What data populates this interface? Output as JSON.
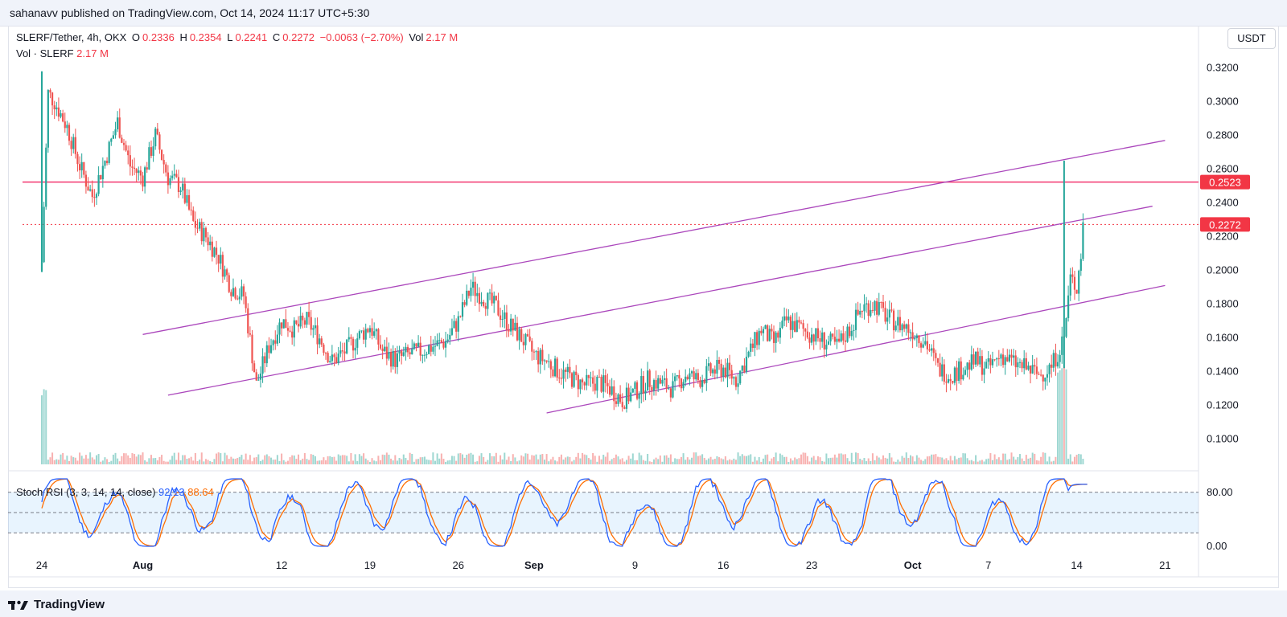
{
  "header": {
    "publisher": "sahanavv published on TradingView.com, Oct 14, 2024 11:17 UTC+5:30"
  },
  "legend": {
    "symbol": "SLERF/Tether, 4h, OKX",
    "o_label": "O",
    "o_value": "0.2336",
    "h_label": "H",
    "h_value": "0.2354",
    "l_label": "L",
    "l_value": "0.2241",
    "c_label": "C",
    "c_value": "0.2272",
    "change": "−0.0063 (−2.70%)",
    "vol_label": "Vol",
    "vol_value": "2.17 M",
    "vol_line_label": "Vol · SLERF",
    "vol_line_value": "2.17 M"
  },
  "currency_button": "USDT",
  "rsi": {
    "label": "Stoch RSI (3, 3, 14, 14, close)",
    "k_value": "92.13",
    "d_value": "88.64",
    "k_color": "#2962ff",
    "d_color": "#ff6d00",
    "band_upper": 80,
    "band_lower": 20,
    "axis_labels": [
      "80.00",
      "0.00"
    ]
  },
  "brand": "TradingView",
  "chart_data": {
    "type": "candlestick",
    "title": "SLERF/Tether, 4h, OKX",
    "xaxis_ticks": [
      "24",
      "Aug",
      "12",
      "19",
      "26",
      "Sep",
      "9",
      "16",
      "23",
      "Oct",
      "7",
      "14",
      "21"
    ],
    "yaxis_ticks": [
      "0.3200",
      "0.3000",
      "0.2800",
      "0.2600",
      "0.2400",
      "0.2200",
      "0.2000",
      "0.1800",
      "0.1600",
      "0.1400",
      "0.1200",
      "0.1000"
    ],
    "ylim": [
      0.085,
      0.325
    ],
    "price_labels": [
      {
        "text": "0.2523",
        "value": 0.2523,
        "color": "#f23645"
      },
      {
        "text": "0.2272",
        "value": 0.2272,
        "color": "#f23645"
      }
    ],
    "horizontal_lines": [
      {
        "value": 0.2523,
        "color": "#f23670",
        "style": "solid"
      },
      {
        "value": 0.2272,
        "color": "#f23645",
        "style": "dotted"
      }
    ],
    "trendline_color": "#ab47bc",
    "trendlines": [
      {
        "start": [
          "Aug 1",
          0.162
        ],
        "end": [
          "Oct 21",
          0.277
        ]
      },
      {
        "start": [
          "Aug 3",
          0.126
        ],
        "end": [
          "Oct 20",
          0.238
        ]
      },
      {
        "start": [
          "Sep 2",
          0.1155
        ],
        "end": [
          "Oct 21",
          0.191
        ]
      }
    ],
    "up_color": "#26a69a",
    "down_color": "#ef5350",
    "price_path": [
      [
        "Jul 24",
        0.205
      ],
      [
        "Jul 24",
        0.305
      ],
      [
        "Jul 25",
        0.3
      ],
      [
        "Jul 26",
        0.285
      ],
      [
        "Jul 27",
        0.262
      ],
      [
        "Jul 28",
        0.244
      ],
      [
        "Jul 29",
        0.265
      ],
      [
        "Jul 30",
        0.288
      ],
      [
        "Jul 31",
        0.262
      ],
      [
        "Aug 1",
        0.255
      ],
      [
        "Aug 2",
        0.28
      ],
      [
        "Aug 3",
        0.255
      ],
      [
        "Aug 4",
        0.25
      ],
      [
        "Aug 5",
        0.228
      ],
      [
        "Aug 6",
        0.22
      ],
      [
        "Aug 7",
        0.208
      ],
      [
        "Aug 8",
        0.19
      ],
      [
        "Aug 9",
        0.185
      ],
      [
        "Aug 10",
        0.132
      ],
      [
        "Aug 11",
        0.155
      ],
      [
        "Aug 12",
        0.17
      ],
      [
        "Aug 13",
        0.165
      ],
      [
        "Aug 14",
        0.17
      ],
      [
        "Aug 15",
        0.16
      ],
      [
        "Aug 16",
        0.146
      ],
      [
        "Aug 17",
        0.152
      ],
      [
        "Aug 18",
        0.16
      ],
      [
        "Aug 19",
        0.167
      ],
      [
        "Aug 20",
        0.152
      ],
      [
        "Aug 21",
        0.147
      ],
      [
        "Aug 22",
        0.15
      ],
      [
        "Aug 23",
        0.152
      ],
      [
        "Aug 24",
        0.155
      ],
      [
        "Aug 25",
        0.158
      ],
      [
        "Aug 26",
        0.17
      ],
      [
        "Aug 27",
        0.19
      ],
      [
        "Aug 28",
        0.184
      ],
      [
        "Aug 29",
        0.178
      ],
      [
        "Aug 30",
        0.168
      ],
      [
        "Aug 31",
        0.16
      ],
      [
        "Sep 1",
        0.15
      ],
      [
        "Sep 2",
        0.146
      ],
      [
        "Sep 3",
        0.14
      ],
      [
        "Sep 4",
        0.136
      ],
      [
        "Sep 5",
        0.132
      ],
      [
        "Sep 6",
        0.134
      ],
      [
        "Sep 7",
        0.13
      ],
      [
        "Sep 8",
        0.123
      ],
      [
        "Sep 9",
        0.128
      ],
      [
        "Sep 10",
        0.135
      ],
      [
        "Sep 11",
        0.133
      ],
      [
        "Sep 12",
        0.13
      ],
      [
        "Sep 13",
        0.138
      ],
      [
        "Sep 14",
        0.135
      ],
      [
        "Sep 15",
        0.14
      ],
      [
        "Sep 16",
        0.142
      ],
      [
        "Sep 17",
        0.135
      ],
      [
        "Sep 18",
        0.15
      ],
      [
        "Sep 19",
        0.165
      ],
      [
        "Sep 20",
        0.157
      ],
      [
        "Sep 21",
        0.17
      ],
      [
        "Sep 22",
        0.166
      ],
      [
        "Sep 23",
        0.162
      ],
      [
        "Sep 24",
        0.158
      ],
      [
        "Sep 25",
        0.155
      ],
      [
        "Sep 26",
        0.165
      ],
      [
        "Sep 27",
        0.178
      ],
      [
        "Sep 28",
        0.18
      ],
      [
        "Sep 29",
        0.172
      ],
      [
        "Sep 30",
        0.168
      ],
      [
        "Oct 1",
        0.164
      ],
      [
        "Oct 2",
        0.158
      ],
      [
        "Oct 3",
        0.142
      ],
      [
        "Oct 4",
        0.138
      ],
      [
        "Oct 5",
        0.142
      ],
      [
        "Oct 6",
        0.146
      ],
      [
        "Oct 7",
        0.142
      ],
      [
        "Oct 8",
        0.15
      ],
      [
        "Oct 9",
        0.145
      ],
      [
        "Oct 10",
        0.142
      ],
      [
        "Oct 11",
        0.138
      ],
      [
        "Oct 12",
        0.143
      ],
      [
        "Oct 13",
        0.16
      ],
      [
        "Oct 13",
        0.195
      ],
      [
        "Oct 14",
        0.19
      ],
      [
        "Oct 14",
        0.22
      ],
      [
        "Oct 14",
        0.2272
      ]
    ]
  }
}
